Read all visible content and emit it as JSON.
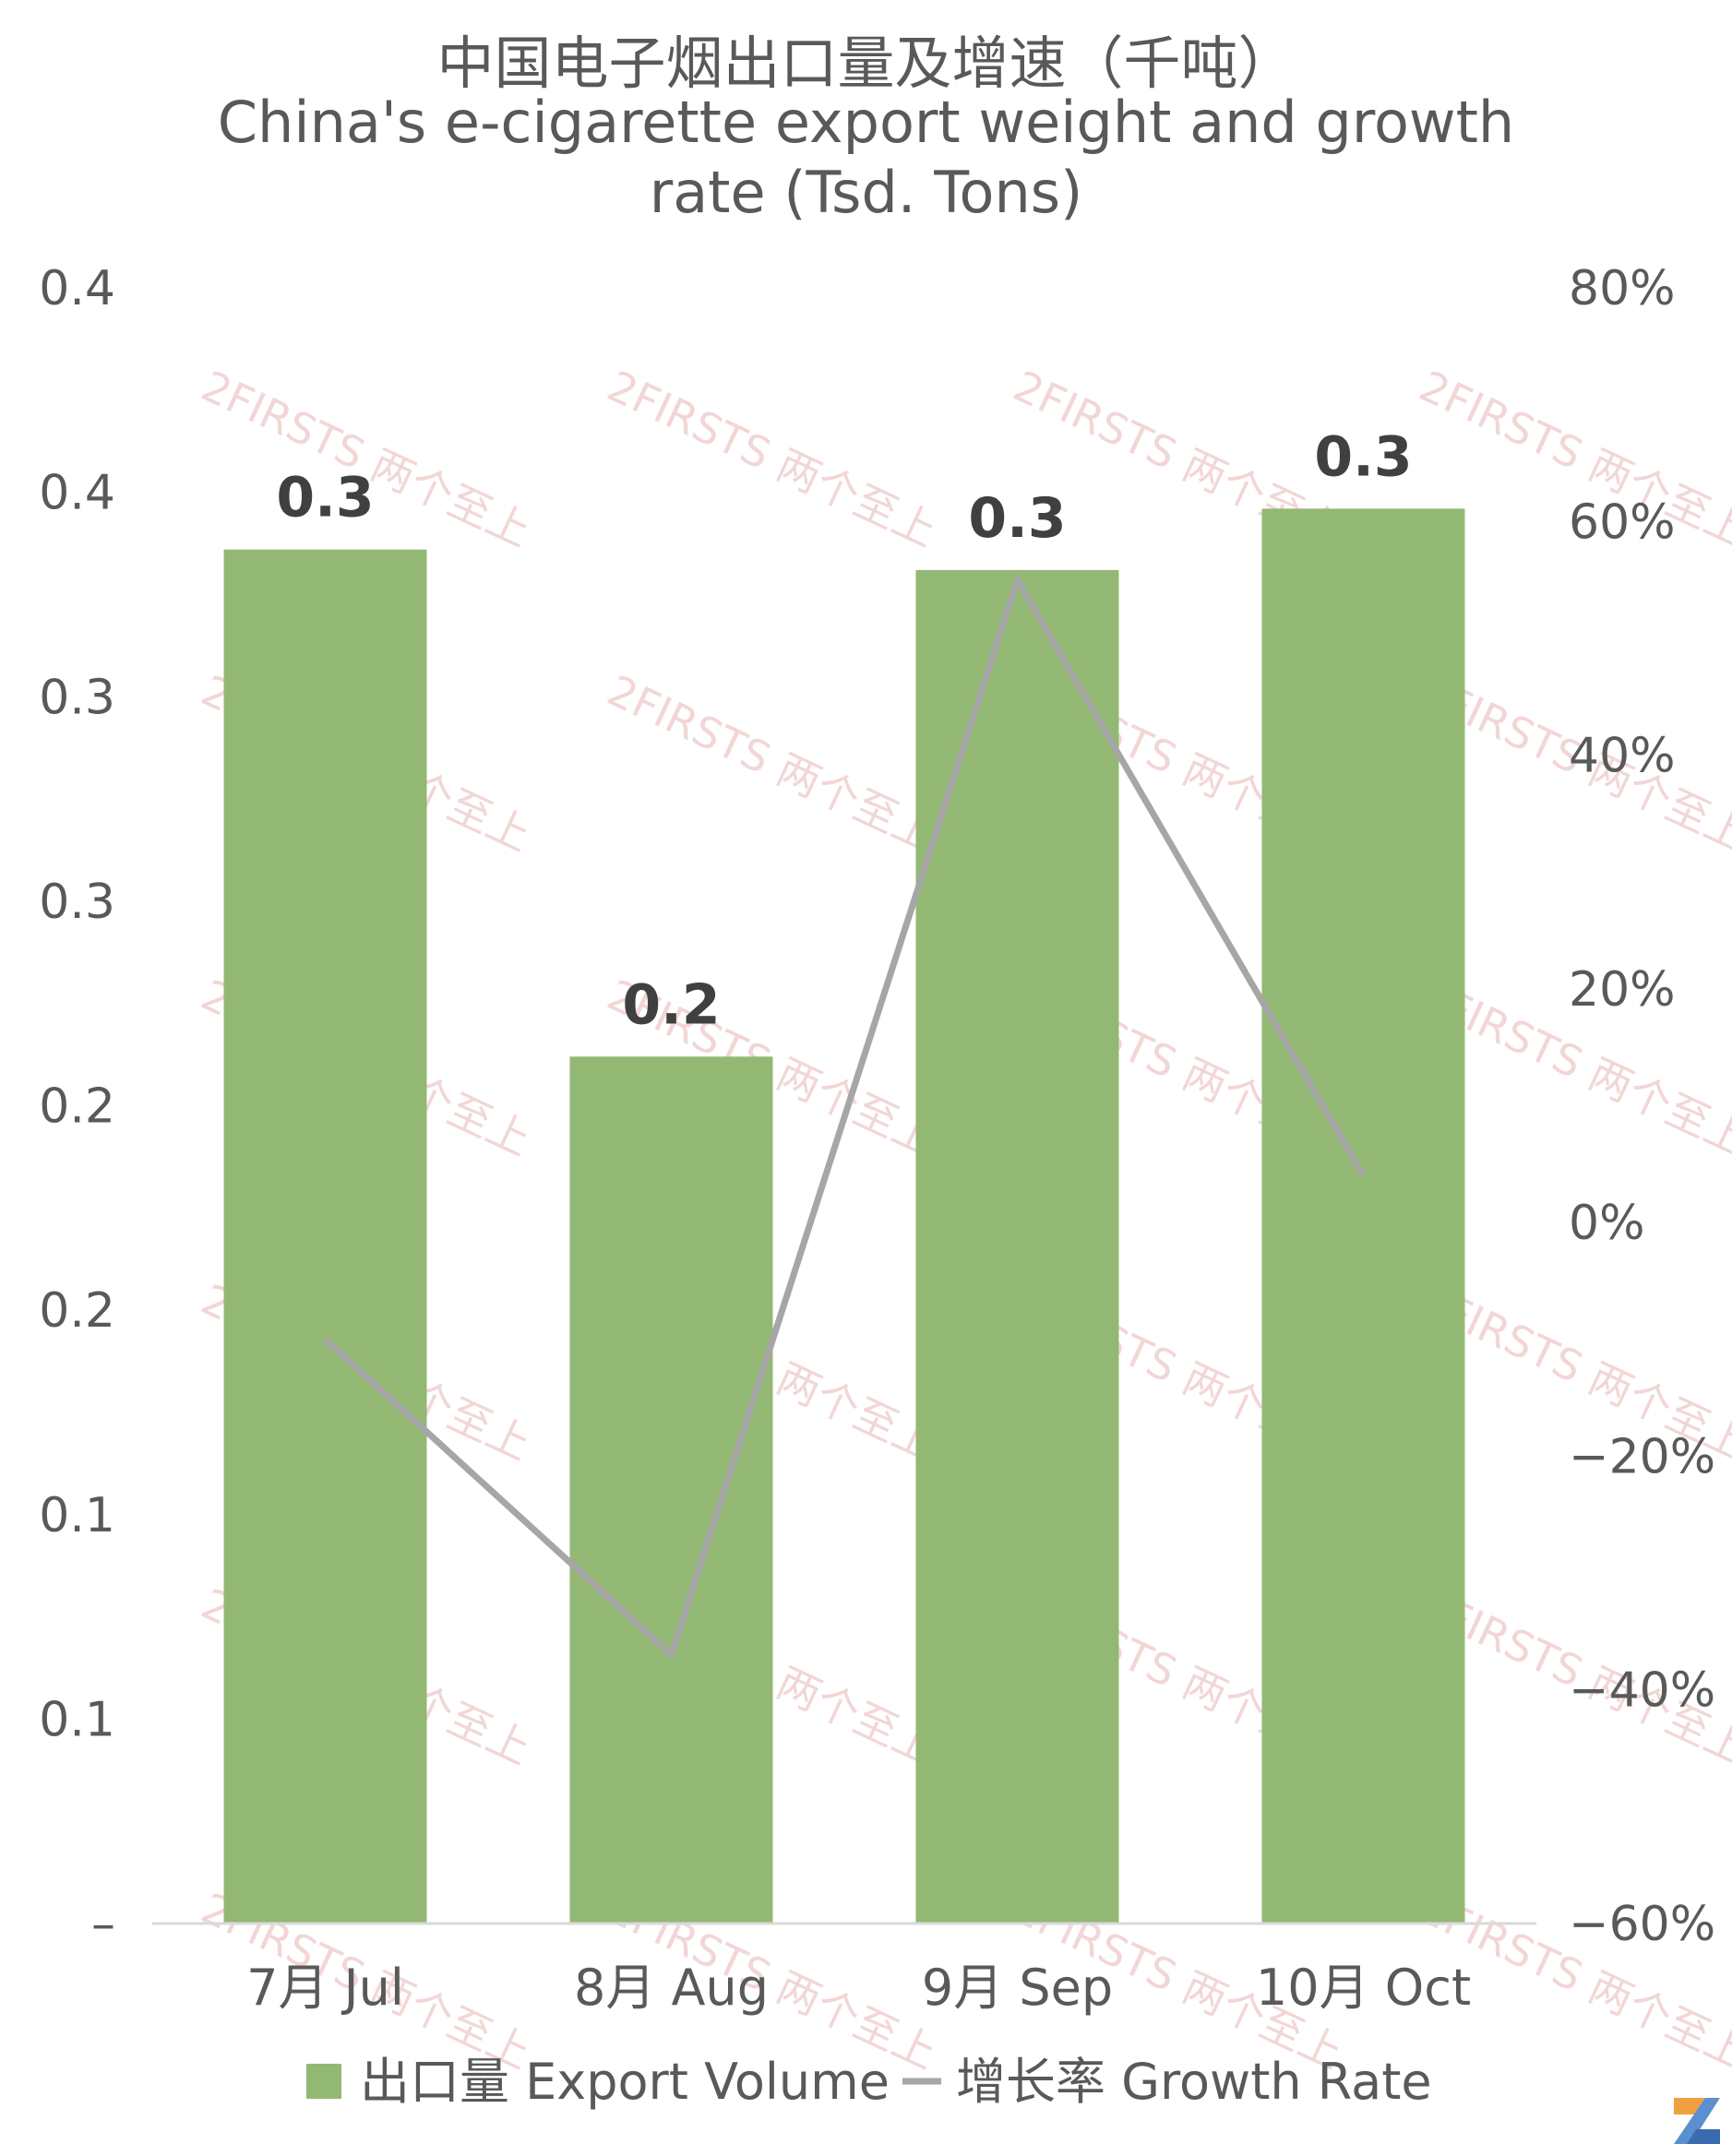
{
  "title": {
    "zh": "中国电子烟出口量及增速（千吨）",
    "en_line1": "China's e-cigarette export weight and growth",
    "en_line2": "rate (Tsd. Tons)"
  },
  "watermark": {
    "text": "2FIRSTS 两个至上"
  },
  "chart_data": {
    "type": "bar",
    "categories": [
      "7月 Jul",
      "8月 Aug",
      "9月 Sep",
      "10月 Oct"
    ],
    "series": [
      {
        "name": "出口量 Export Volume",
        "type": "bar",
        "axis": "left",
        "values": [
          0.336,
          0.212,
          0.331,
          0.346
        ],
        "data_labels": [
          "0.3",
          "0.2",
          "0.3",
          "0.3"
        ],
        "color": "#93b874"
      },
      {
        "name": "增长率 Growth Rate",
        "type": "line",
        "axis": "right",
        "values": [
          -10,
          -37,
          55,
          4
        ],
        "color": "#a6a6a6"
      }
    ],
    "y_left": {
      "min": 0,
      "max": 0.4,
      "tick_labels": [
        "–",
        "0.1",
        "0.1",
        "0.2",
        "0.2",
        "0.3",
        "0.3",
        "0.4",
        "0.4"
      ]
    },
    "y_right": {
      "min": -60,
      "max": 80,
      "tick_labels": [
        "−60%",
        "−40%",
        "−20%",
        "0%",
        "20%",
        "40%",
        "60%",
        "80%"
      ]
    },
    "legend_position": "bottom",
    "grid": false
  },
  "colors": {
    "bar": "#93b874",
    "line": "#a6a6a6",
    "text": "#595959",
    "data_label": "#404040",
    "axis": "#d9d9d9",
    "watermark": "#e9b6b6"
  }
}
